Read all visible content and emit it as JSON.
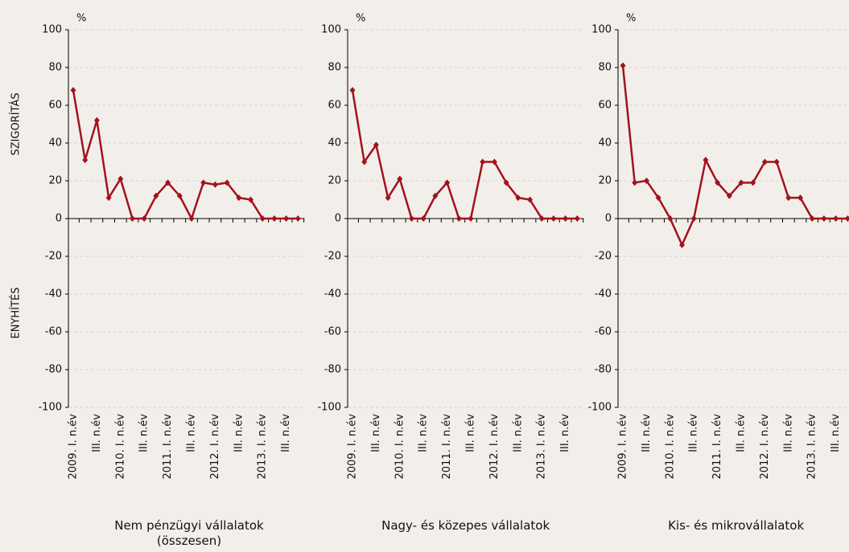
{
  "chart_data": [
    {
      "type": "line",
      "title": "Nem pénzügyi vállalatok (összesen)",
      "unit": "%",
      "ylabel_top": "SZIGORÍTÁS",
      "ylabel_bottom": "ENYHÍTÉS",
      "categories": [
        "2009. I. n.év",
        null,
        "III. n.év",
        null,
        "2010. I. n.év",
        null,
        "III. n.év",
        null,
        "2011. I. n.év",
        null,
        "III. n.év",
        null,
        "2012. I. n.év",
        null,
        "III. n.év",
        null,
        "2013. I. n.év",
        null,
        "III. n.év",
        null
      ],
      "values": [
        68,
        31,
        52,
        11,
        21,
        0,
        0,
        12,
        19,
        12,
        0,
        19,
        18,
        19,
        11,
        10,
        0,
        0,
        0,
        0
      ],
      "color": "#a3121b",
      "ylim": [
        -100,
        100
      ],
      "yticks": [
        -100,
        -80,
        -60,
        -40,
        -20,
        0,
        20,
        40,
        60,
        80,
        100
      ],
      "grid": true
    },
    {
      "type": "line",
      "title": "Nagy- és közepes vállalatok",
      "unit": "%",
      "categories": [
        "2009. I. n.év",
        null,
        "III. n.év",
        null,
        "2010. I. n.év",
        null,
        "III. n.év",
        null,
        "2011. I. n.év",
        null,
        "III. n.év",
        null,
        "2012. I. n.év",
        null,
        "III. n.év",
        null,
        "2013. I. n.év",
        null,
        "III. n.év",
        null
      ],
      "values": [
        68,
        30,
        39,
        11,
        21,
        0,
        0,
        12,
        19,
        0,
        0,
        30,
        30,
        19,
        11,
        10,
        0,
        0,
        0,
        0
      ],
      "color": "#a3121b",
      "ylim": [
        -100,
        100
      ],
      "yticks": [
        -100,
        -80,
        -60,
        -40,
        -20,
        0,
        20,
        40,
        60,
        80,
        100
      ],
      "grid": true
    },
    {
      "type": "line",
      "title": "Kis- és mikrovállalatok",
      "unit": "%",
      "categories": [
        "2009. I. n.év",
        null,
        "III. n.év",
        null,
        "2010. I. n.év",
        null,
        "III. n.év",
        null,
        "2011. I. n.év",
        null,
        "III. n.év",
        null,
        "2012. I. n.év",
        null,
        "III. n.év",
        null,
        "2013. I. n.év",
        null,
        "III. n.év",
        null
      ],
      "values": [
        81,
        19,
        20,
        11,
        0,
        -14,
        0,
        31,
        19,
        12,
        19,
        19,
        30,
        30,
        11,
        11,
        0,
        0,
        0,
        0
      ],
      "color": "#a3121b",
      "ylim": [
        -100,
        100
      ],
      "yticks": [
        -100,
        -80,
        -60,
        -40,
        -20,
        0,
        20,
        40,
        60,
        80,
        100
      ],
      "grid": true
    }
  ]
}
